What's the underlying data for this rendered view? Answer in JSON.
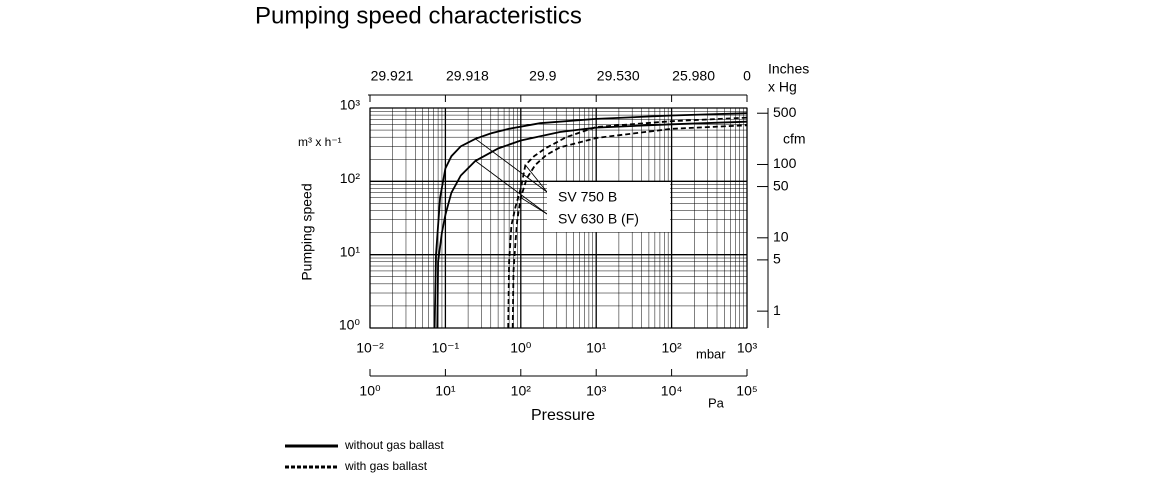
{
  "chart_data": {
    "type": "line",
    "title": "Pumping speed characteristics",
    "ylabel": "Pumping speed",
    "yunit": "m³ x h⁻¹",
    "xlabel": "Pressure",
    "xunit": "mbar",
    "x3unit": "Pa",
    "x2unit": [
      "Inches",
      "x Hg"
    ],
    "y2unit": "cfm",
    "log_x": true,
    "log_y": true,
    "grid": true,
    "color": "#000000",
    "xlim": [
      0.01,
      1000
    ],
    "xticks": [
      {
        "value": 0.01,
        "label": "10⁻²"
      },
      {
        "value": 0.1,
        "label": "10⁻¹"
      },
      {
        "value": 1,
        "label": "10⁰"
      },
      {
        "value": 10,
        "label": "10¹"
      },
      {
        "value": 100,
        "label": "10²"
      },
      {
        "value": 1000,
        "label": "10³"
      }
    ],
    "ylim": [
      1,
      1000
    ],
    "yticks": [
      {
        "value": 1,
        "label": "10⁰"
      },
      {
        "value": 10,
        "label": "10¹"
      },
      {
        "value": 100,
        "label": "10²"
      },
      {
        "value": 1000,
        "label": "10³"
      }
    ],
    "x2ticks": [
      {
        "value": 0.01,
        "label": "29.921"
      },
      {
        "value": 0.1,
        "label": "29.918"
      },
      {
        "value": 1,
        "label": "29.9"
      },
      {
        "value": 10,
        "label": "29.530"
      },
      {
        "value": 100,
        "label": "25.980"
      },
      {
        "value": 1000,
        "label": "0"
      }
    ],
    "x3lim": [
      1,
      100000
    ],
    "x3ticks": [
      {
        "value": 1,
        "label": "10⁰"
      },
      {
        "value": 10,
        "label": "10¹"
      },
      {
        "value": 100,
        "label": "10²"
      },
      {
        "value": 1000,
        "label": "10³"
      },
      {
        "value": 10000,
        "label": "10⁴"
      },
      {
        "value": 100000,
        "label": "10⁵"
      }
    ],
    "y2lim": [
      0.589,
      589
    ],
    "y2ticks": [
      1,
      5,
      10,
      50,
      100,
      500
    ],
    "line_styles": [
      {
        "label": "without gas ballast",
        "dash": "none"
      },
      {
        "label": "with gas ballast",
        "dash": "5 3"
      }
    ],
    "series": [
      {
        "name": "SV 750 B",
        "curves": [
          {
            "x": [
              0.072,
              0.075,
              0.085,
              0.1,
              0.12,
              0.16,
              0.25,
              0.4,
              0.7,
              1.8,
              10,
              100,
              1000
            ],
            "values": [
              1,
              10,
              60,
              150,
              220,
              300,
              380,
              450,
              520,
              620,
              710,
              790,
              850
            ]
          },
          {
            "x": [
              0.68,
              0.7,
              0.75,
              0.85,
              1,
              1.15,
              1.5,
              2.1,
              4,
              10,
              100,
              1000
            ],
            "values": [
              1,
              8,
              25,
              45,
              80,
              167,
              220,
              280,
              400,
              550,
              660,
              740
            ]
          }
        ]
      },
      {
        "name": "SV 630 B (F)",
        "curves": [
          {
            "x": [
              0.078,
              0.08,
              0.09,
              0.1,
              0.12,
              0.16,
              0.25,
              0.5,
              1,
              3.3,
              10,
              100,
              1000
            ],
            "values": [
              1,
              8,
              20,
              35,
              70,
              120,
              190,
              280,
              360,
              470,
              540,
              600,
              650
            ]
          },
          {
            "x": [
              0.78,
              0.8,
              0.85,
              0.9,
              1,
              1.2,
              1.55,
              2.2,
              3.3,
              10,
              100,
              1000
            ],
            "values": [
              1,
              6,
              15,
              30,
              60,
              110,
              167,
              230,
              290,
              390,
              520,
              580
            ]
          }
        ]
      }
    ]
  }
}
